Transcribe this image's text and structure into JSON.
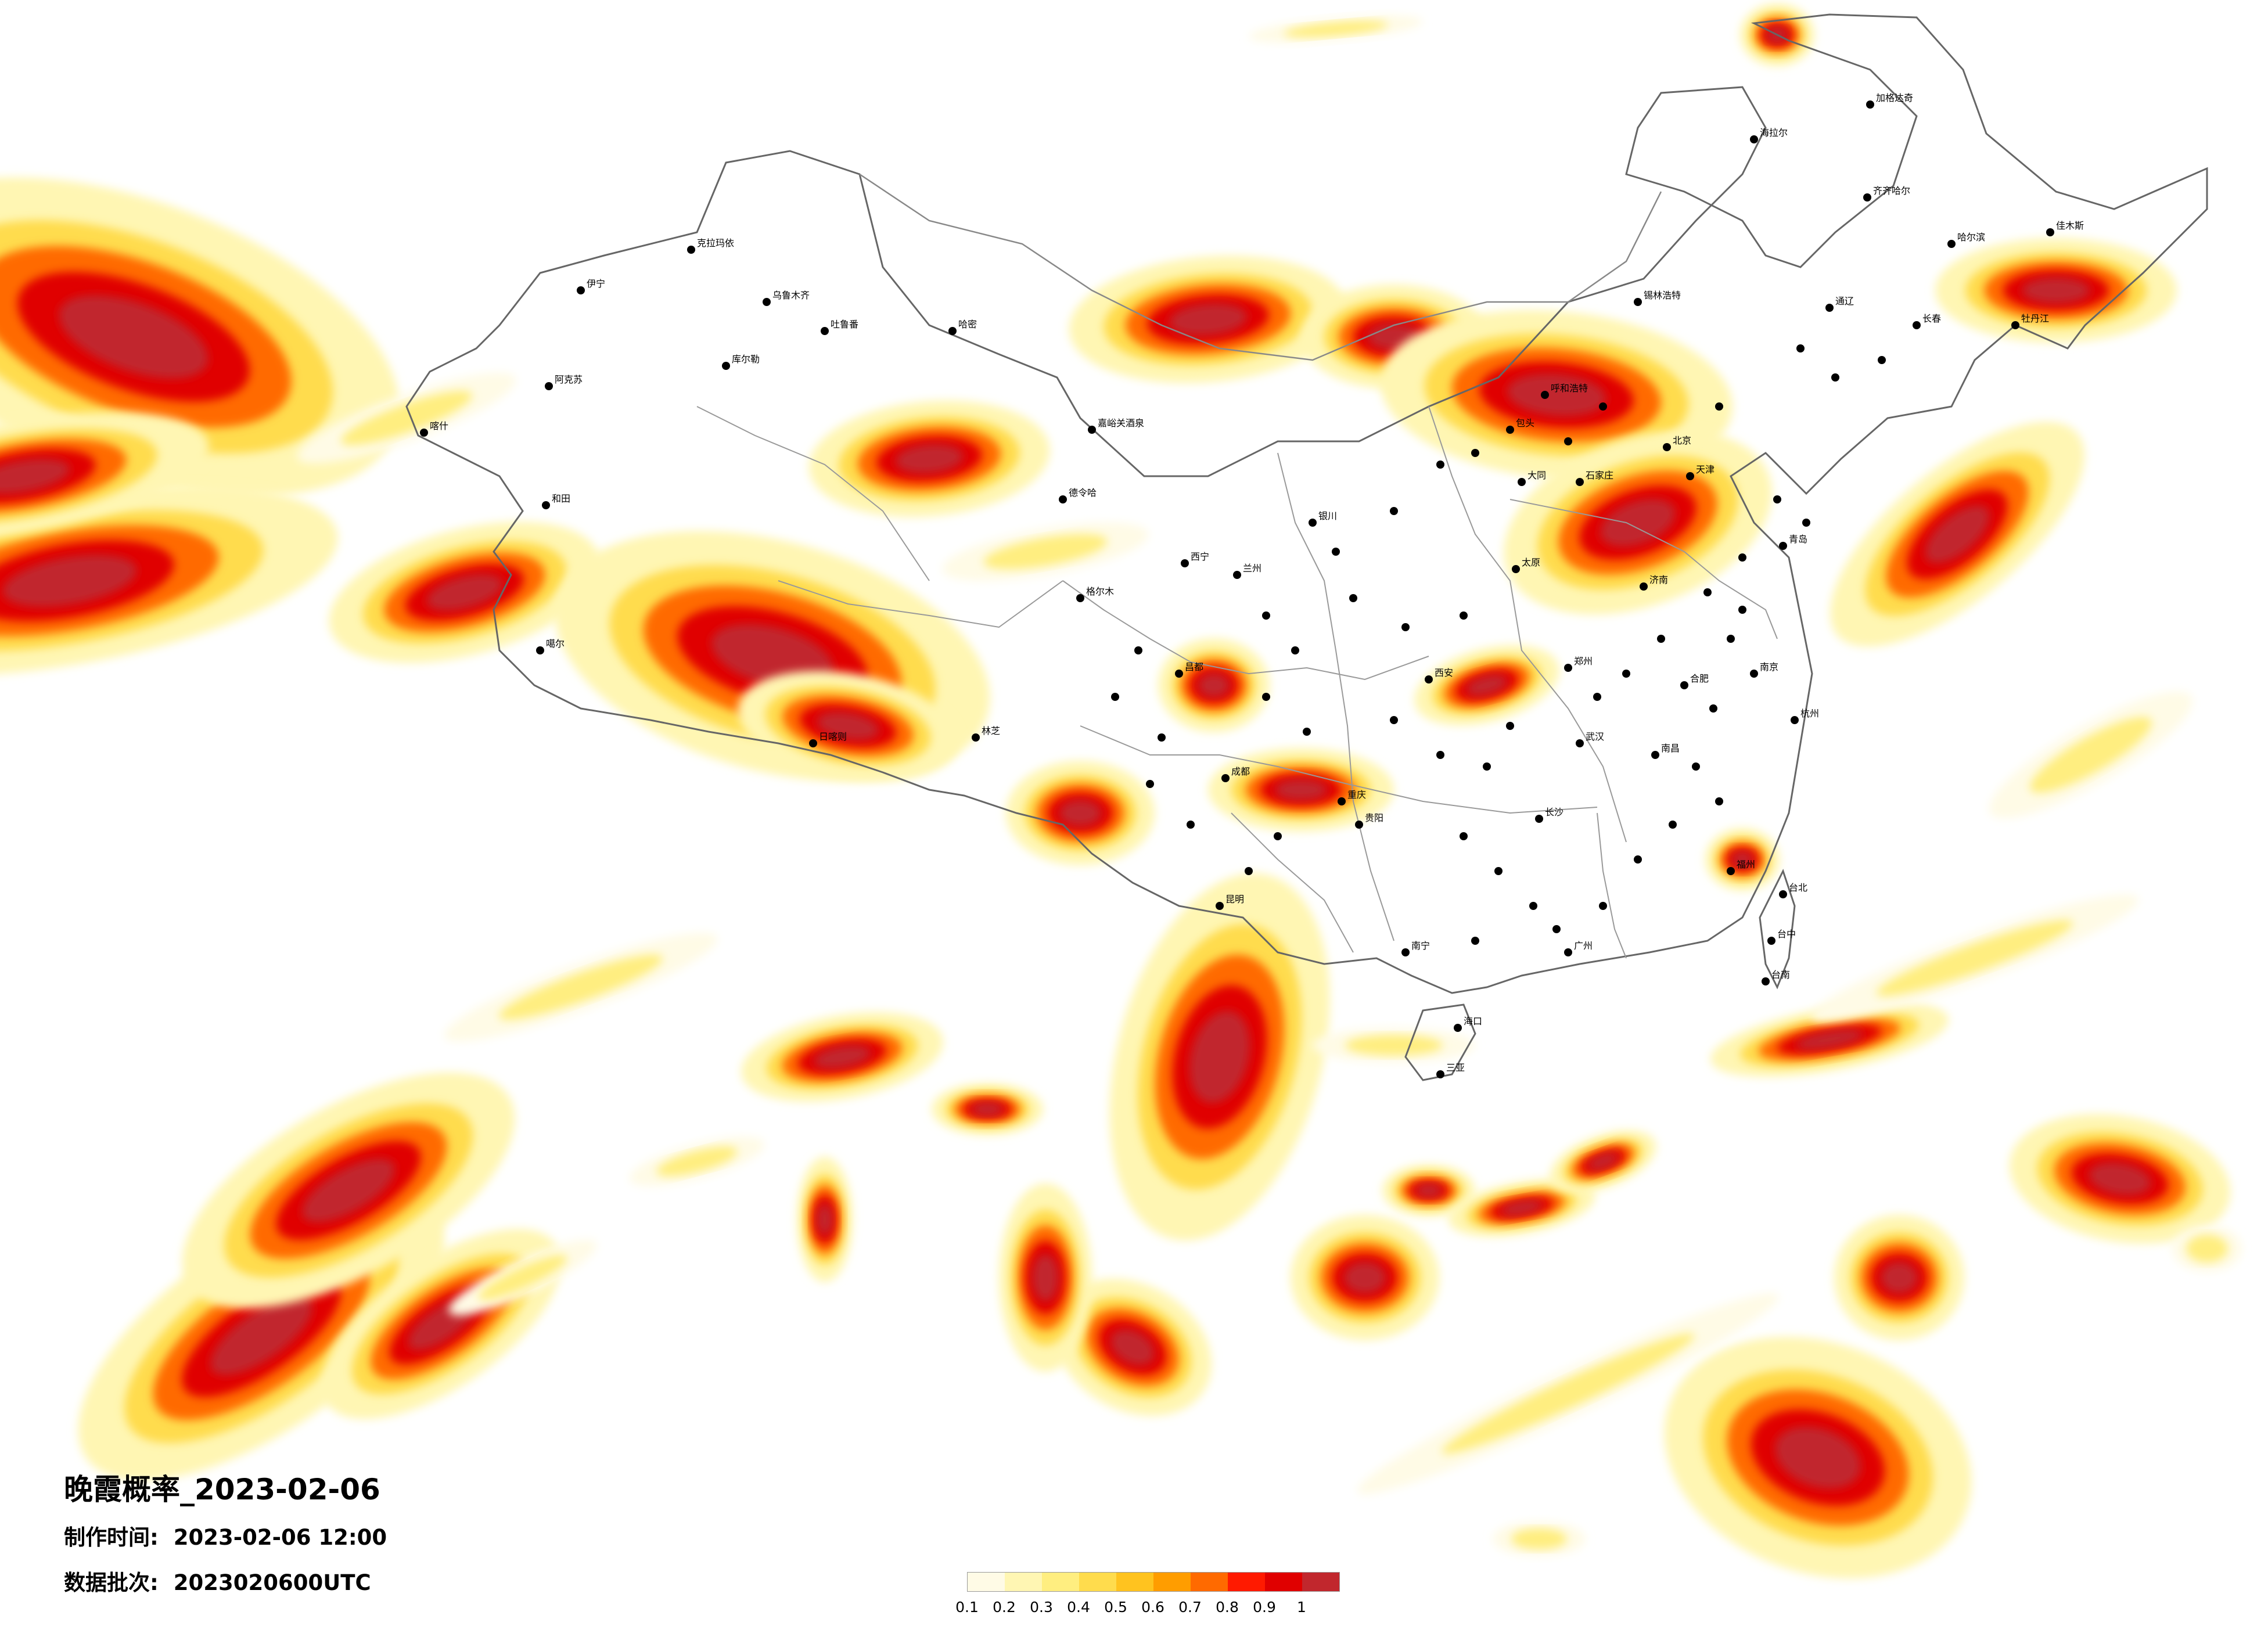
{
  "map": {
    "title": "晚霞概率_2023-02-06",
    "produced_label": "制作时间:",
    "produced_value": "2023-02-06 12:00",
    "batch_label": "数据批次:",
    "batch_value": "2023020600UTC"
  },
  "legend": {
    "ticks": [
      "0.1",
      "0.2",
      "0.3",
      "0.4",
      "0.5",
      "0.6",
      "0.7",
      "0.8",
      "0.9",
      "1"
    ],
    "colors": [
      "#fffbe6",
      "#fff6b3",
      "#ffee80",
      "#ffdc4d",
      "#ffc31f",
      "#ff9d00",
      "#ff6a00",
      "#ff1a00",
      "#e00000",
      "#c1272d"
    ]
  },
  "cities": [
    {
      "name": "克拉玛依"
    },
    {
      "name": "乌鲁木齐"
    },
    {
      "name": "吐鲁番"
    },
    {
      "name": "哈密"
    },
    {
      "name": "伊宁"
    },
    {
      "name": "阿克苏"
    },
    {
      "name": "喀什"
    },
    {
      "name": "和田"
    },
    {
      "name": "库尔勒"
    },
    {
      "name": "格尔木"
    },
    {
      "name": "德令哈"
    },
    {
      "name": "噶尔"
    },
    {
      "name": "日喀则"
    },
    {
      "name": "林芝"
    },
    {
      "name": "昌都"
    },
    {
      "name": "嘉峪关酒泉"
    },
    {
      "name": "海拉尔"
    },
    {
      "name": "加格达奇"
    },
    {
      "name": "齐齐哈尔"
    },
    {
      "name": "哈尔滨"
    },
    {
      "name": "佳木斯"
    },
    {
      "name": "牡丹江"
    },
    {
      "name": "长春"
    },
    {
      "name": "通辽"
    },
    {
      "name": "锡林浩特"
    },
    {
      "name": "呼和浩特"
    },
    {
      "name": "包头"
    },
    {
      "name": "大同"
    },
    {
      "name": "太原"
    },
    {
      "name": "石家庄"
    },
    {
      "name": "北京"
    },
    {
      "name": "天津"
    },
    {
      "name": "济南"
    },
    {
      "name": "青岛"
    },
    {
      "name": "郑州"
    },
    {
      "name": "西安"
    },
    {
      "name": "兰州"
    },
    {
      "name": "西宁"
    },
    {
      "name": "银川"
    },
    {
      "name": "成都"
    },
    {
      "name": "重庆"
    },
    {
      "name": "贵阳"
    },
    {
      "name": "昆明"
    },
    {
      "name": "南宁"
    },
    {
      "name": "广州"
    },
    {
      "name": "长沙"
    },
    {
      "name": "武汉"
    },
    {
      "name": "南昌"
    },
    {
      "name": "合肥"
    },
    {
      "name": "南京"
    },
    {
      "name": "杭州"
    },
    {
      "name": "福州"
    },
    {
      "name": "台北"
    },
    {
      "name": "台中"
    },
    {
      "name": "台南"
    },
    {
      "name": "海口"
    },
    {
      "name": "三亚"
    }
  ]
}
